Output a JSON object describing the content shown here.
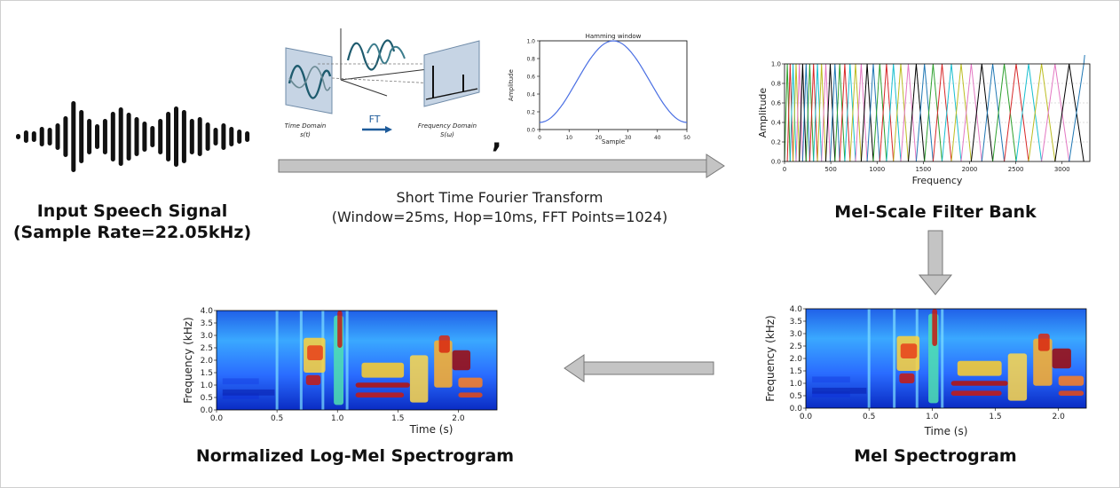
{
  "diagram": {
    "input_signal": {
      "title_line1": "Input Speech Signal",
      "title_line2": "(Sample Rate=22.05kHz)"
    },
    "stft": {
      "label_line1": "Short Time Fourier Transform",
      "label_line2": "(Window=25ms, Hop=10ms, FFT Points=1024)",
      "fourier_illustration": {
        "time_domain_label": "Time Domain",
        "time_domain_symbol": "s(t)",
        "ft_label": "FT",
        "frequency_domain_label": "Frequency Domain",
        "frequency_domain_symbol": "S(ω)"
      },
      "separator": ","
    },
    "filter_bank": {
      "title": "Mel-Scale Filter Bank"
    },
    "mel_spectrogram": {
      "title": "Mel Spectrogram"
    },
    "log_mel_spectrogram": {
      "title": "Normalized Log-Mel Spectrogram"
    }
  },
  "chart_data": [
    {
      "id": "hamming",
      "type": "line",
      "title": "Hamming window",
      "xlabel": "Sample",
      "ylabel": "Amplitude",
      "xlim": [
        0,
        50
      ],
      "ylim": [
        0,
        1.0
      ],
      "xticks": [
        "0",
        "10",
        "20",
        "30",
        "40",
        "50"
      ],
      "yticks": [
        "0.0",
        "0.2",
        "0.4",
        "0.6",
        "0.8",
        "1.0"
      ],
      "series": [
        {
          "function": "0.54 - 0.46*cos(2*pi*n/50)",
          "n_points": 51
        }
      ],
      "color": "#4a6fe3"
    },
    {
      "id": "melbank",
      "type": "line",
      "xlabel": "Frequency",
      "ylabel": "Amplitude",
      "xlim": [
        0,
        3300
      ],
      "ylim": [
        0,
        1.0
      ],
      "xticks": [
        "0",
        "500",
        "1000",
        "1500",
        "2000",
        "2500",
        "3000"
      ],
      "yticks": [
        "0.0",
        "0.2",
        "0.4",
        "0.6",
        "0.8",
        "1.0"
      ],
      "grid": true,
      "filter_shape": "triangular",
      "colors": [
        "#1f77b4",
        "#2ca02c",
        "#d62728",
        "#17becf",
        "#bcbd22",
        "#e377c2",
        "#000000"
      ]
    },
    {
      "id": "melspec",
      "type": "heatmap",
      "xlabel": "Time (s)",
      "ylabel": "Frequency (kHz)",
      "xlim": [
        0,
        2.22
      ],
      "ylim": [
        0,
        4.0
      ],
      "xticks": [
        "0.0",
        "0.5",
        "1.0",
        "1.5",
        "2.0"
      ],
      "yticks": [
        "0.0",
        "0.5",
        "1.0",
        "1.5",
        "2.0",
        "2.5",
        "3.0",
        "3.5",
        "4.0"
      ],
      "colormap": "jet"
    },
    {
      "id": "logmelspec",
      "type": "heatmap",
      "xlabel": "Time (s)",
      "ylabel": "Frequency (kHz)",
      "xlim": [
        0,
        2.32
      ],
      "ylim": [
        0,
        4.0
      ],
      "xticks": [
        "0.0",
        "0.5",
        "1.0",
        "1.5",
        "2.0"
      ],
      "yticks": [
        "0.0",
        "0.5",
        "1.0",
        "1.5",
        "2.0",
        "2.5",
        "3.0",
        "3.5",
        "4.0"
      ],
      "colormap": "jet"
    }
  ]
}
